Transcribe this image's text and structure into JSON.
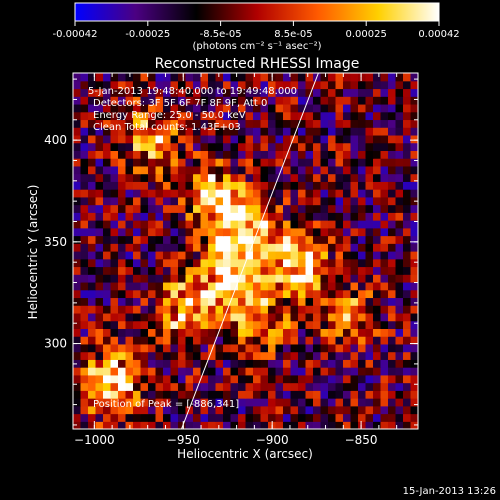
{
  "chart_data": {
    "type": "heatmap",
    "title": "Reconstructed RHESSI Image",
    "xlabel": "Heliocentric X (arcsec)",
    "ylabel": "Heliocentric Y (arcsec)",
    "xlim": [
      -1012,
      -818
    ],
    "ylim": [
      258,
      433
    ],
    "x_ticks": [
      -1000,
      -950,
      -900,
      -850
    ],
    "y_ticks": [
      300,
      350,
      400
    ],
    "colorbar": {
      "range": [
        -0.00042,
        0.00042
      ],
      "ticks": [
        "-0.00042",
        "-0.00025",
        "-8.5e-05",
        "8.5e-05",
        "0.00025",
        "0.00042"
      ],
      "unit_label": "(photons cm⁻² s⁻¹ asec⁻²)",
      "colors": [
        "#0000ff",
        "#4b0082",
        "#000000",
        "#b00000",
        "#ff5a00",
        "#ffd000",
        "#ffffff"
      ]
    },
    "limb_line": [
      [
        -951,
        258
      ],
      [
        -874,
        433
      ]
    ],
    "sources": [
      {
        "x": -989,
        "y": 282,
        "peak": 0.00038
      },
      {
        "x": -925,
        "y": 330,
        "peak": 0.00036
      },
      {
        "x": -915,
        "y": 355,
        "peak": 0.00032
      },
      {
        "x": -886,
        "y": 341,
        "peak": 0.00042
      },
      {
        "x": -932,
        "y": 372,
        "peak": 0.0003
      },
      {
        "x": -967,
        "y": 400,
        "peak": 0.00028
      },
      {
        "x": -952,
        "y": 318,
        "peak": 0.00024
      },
      {
        "x": -858,
        "y": 315,
        "peak": 0.00018
      },
      {
        "x": -905,
        "y": 312,
        "peak": 0.0002
      }
    ],
    "annotations": {
      "time": "5-Jan-2013 19:48:40.000 to 19:49:48.000",
      "detectors": "Detectors: 3F 5F 6F 7F 8F 9F, Att 0",
      "energy": "Energy Range: 25.0 - 50.0 keV",
      "clean": "Clean     Total counts: 1.43E+03",
      "peak": "Position of Peak = [-886,341]"
    },
    "timestamp": "15-Jan-2013 13:26"
  }
}
